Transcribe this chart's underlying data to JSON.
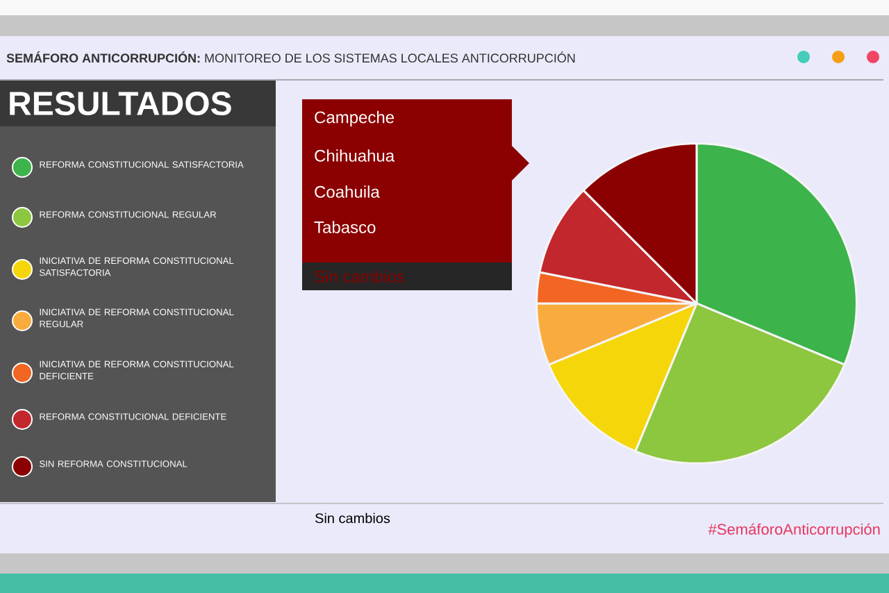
{
  "chart_data": {
    "type": "pie",
    "title": "**SEMÁFORO ANTICORRUPCIÓN:** MONITOREO DE LOS SISTEMAS LOCALES ANTICORRUPCIÓN",
    "subtitle": "RESULTADOS",
    "categories": [
      "REFORMA CONSTITUCIONAL SATISFACTORIA",
      "REFORMA CONSTITUCIONAL REGULAR",
      "INICIATIVA DE REFORMA CONSTITUCIONAL SATISFACTORIA",
      "INICIATIVA DE REFORMA CONSTITUCIONAL REGULAR",
      "INICIATIVA DE REFORMA CONSTITUCIONAL DEFICIENTE",
      "REFORMA CONSTITUCIONAL DEFICIENTE",
      "SIN REFORMA CONSTITUCIONAL"
    ],
    "values": [
      31.25,
      25,
      12.5,
      6.25,
      3.125,
      9.375,
      12.5
    ],
    "colors": [
      "#3cb44b",
      "#8dc63f",
      "#f5d60a",
      "#f9ac3d",
      "#f26522",
      "#c1272d",
      "#8b0000"
    ],
    "legend": "left",
    "annotations": [
      "Campeche",
      "Chihuahua",
      "Coahuila",
      "Tabasco",
      "Sin cambios",
      "Sin cambios",
      "#SemáforoAnticorrupción"
    ]
  }
}
